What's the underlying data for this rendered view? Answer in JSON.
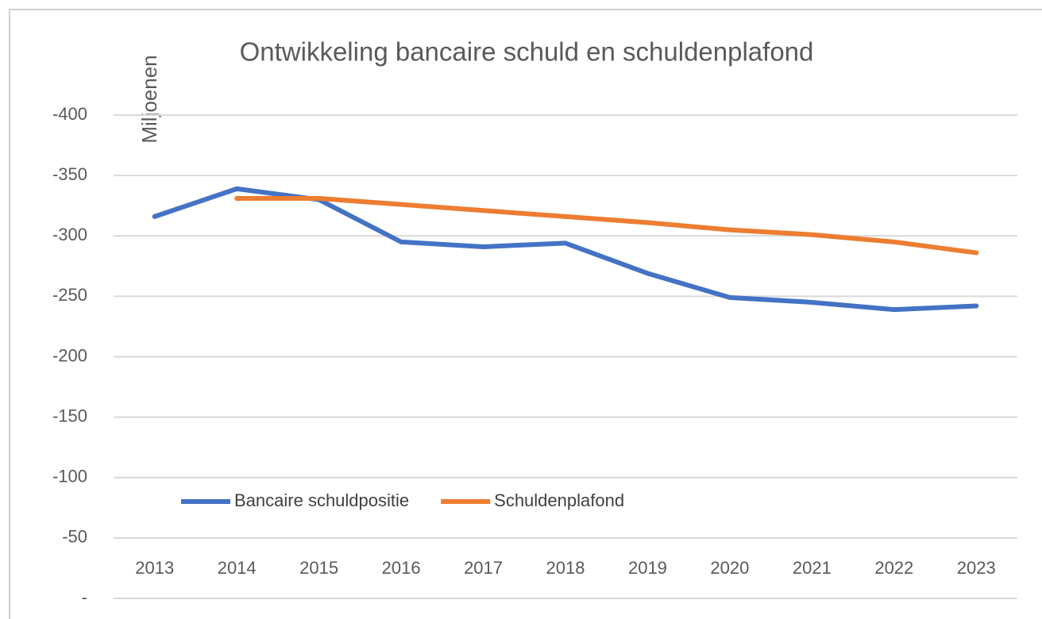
{
  "chart_data": {
    "type": "line",
    "title": "Ontwikkeling bancaire schuld en schuldenplafond",
    "y_label": "Miljoenen",
    "categories": [
      "2013",
      "2014",
      "2015",
      "2016",
      "2017",
      "2018",
      "2019",
      "2020",
      "2021",
      "2022",
      "2023"
    ],
    "series": [
      {
        "name": "Bancaire schuldpositie",
        "color": "#4472c4",
        "values": [
          -316,
          -339,
          -330,
          -295,
          -291,
          -294,
          -269,
          -249,
          -245,
          -239,
          -242
        ]
      },
      {
        "name": "Schuldenplafond",
        "color": "#ed7d31",
        "values": [
          null,
          -331,
          -331,
          -326,
          -321,
          -316,
          -311,
          -305,
          -301,
          -295,
          -286
        ]
      }
    ],
    "ylim": [
      0,
      -400
    ],
    "yticks": [
      {
        "value": 0,
        "label": "-"
      },
      -50,
      -100,
      -150,
      -200,
      -250,
      -300,
      -350,
      -400
    ],
    "grid": true,
    "legend": "lower left"
  }
}
